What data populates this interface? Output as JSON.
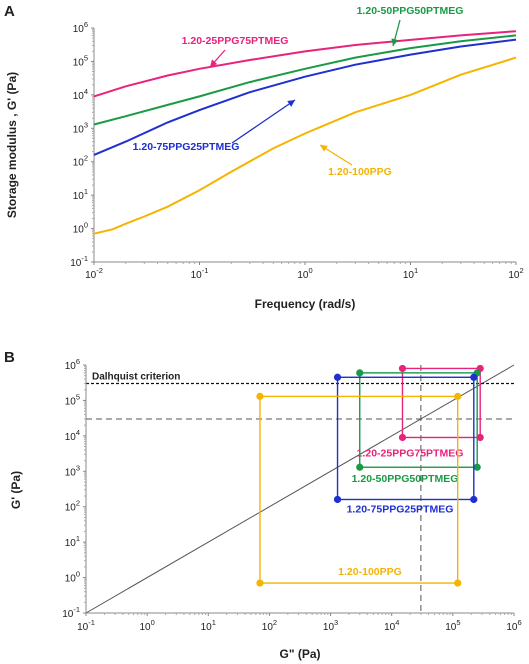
{
  "chart_data": [
    {
      "panel": "A",
      "type": "line",
      "xlabel": "Frequency (rad/s)",
      "ylabel": "Storage modulus , G' (Pa)",
      "xscale": "log",
      "yscale": "log",
      "xlim": [
        0.01,
        100
      ],
      "ylim": [
        0.1,
        1000000
      ],
      "x_ticks": [
        "10-2",
        "10-1",
        "100",
        "101",
        "102"
      ],
      "y_ticks": [
        "10-1",
        "100",
        "101",
        "102",
        "103",
        "104",
        "105",
        "106"
      ],
      "series": [
        {
          "name": "1.20-25PPG75PTMEG",
          "color": "#e8237c",
          "x": [
            0.01,
            0.02,
            0.05,
            0.1,
            0.3,
            1,
            3,
            10,
            30,
            100
          ],
          "y": [
            9000,
            18000,
            38000,
            60000,
            110000,
            200000,
            310000,
            440000,
            600000,
            800000
          ]
        },
        {
          "name": "1.20-50PPG50PTMEG",
          "color": "#1a9a45",
          "x": [
            0.01,
            0.02,
            0.05,
            0.1,
            0.3,
            1,
            3,
            10,
            30,
            100
          ],
          "y": [
            1300,
            2300,
            5000,
            9000,
            24000,
            60000,
            130000,
            250000,
            400000,
            600000
          ]
        },
        {
          "name": "1.20-75PPG25PTMEG",
          "color": "#1f2fd0",
          "x": [
            0.01,
            0.02,
            0.05,
            0.1,
            0.3,
            1,
            3,
            10,
            30,
            100
          ],
          "y": [
            160,
            400,
            1500,
            3500,
            12000,
            35000,
            80000,
            160000,
            280000,
            450000
          ]
        },
        {
          "name": "1.20-100PPG",
          "color": "#f5b400",
          "x": [
            0.01,
            0.015,
            0.02,
            0.03,
            0.05,
            0.1,
            0.2,
            0.5,
            1,
            3,
            10,
            30,
            100
          ],
          "y": [
            0.7,
            0.95,
            1.4,
            2.3,
            4.5,
            14,
            50,
            250,
            700,
            3000,
            10000,
            40000,
            130000
          ]
        }
      ]
    },
    {
      "panel": "B",
      "type": "scatter",
      "xlabel": "G\" (Pa)",
      "ylabel": "G' (Pa)",
      "xscale": "log",
      "yscale": "log",
      "xlim": [
        0.1,
        1000000
      ],
      "ylim": [
        0.1,
        1000000
      ],
      "x_ticks": [
        "10-1",
        "100",
        "101",
        "102",
        "103",
        "104",
        "105",
        "106"
      ],
      "y_ticks": [
        "10-1",
        "100",
        "101",
        "102",
        "103",
        "104",
        "105",
        "106"
      ],
      "annotation": "Dalhquist criterion",
      "dalhquist_y": 300000,
      "ref_h_y": 30000,
      "ref_v_x": 30000,
      "series": [
        {
          "name": "1.20-25PPG75PTMEG",
          "color": "#e8237c",
          "points": [
            [
              15000,
              800000
            ],
            [
              280000,
              800000
            ],
            [
              15000,
              9000
            ],
            [
              280000,
              9000
            ]
          ]
        },
        {
          "name": "1.20-50PPG50PTMEG",
          "color": "#1a9a45",
          "points": [
            [
              3000,
              600000
            ],
            [
              250000,
              600000
            ],
            [
              3000,
              1300
            ],
            [
              250000,
              1300
            ]
          ]
        },
        {
          "name": "1.20-75PPG25PTMEG",
          "color": "#1f2fd0",
          "points": [
            [
              1300,
              450000
            ],
            [
              220000,
              450000
            ],
            [
              1300,
              160
            ],
            [
              220000,
              160
            ]
          ]
        },
        {
          "name": "1.20-100PPG",
          "color": "#f5b400",
          "points": [
            [
              70,
              130000
            ],
            [
              120000,
              130000
            ],
            [
              70,
              0.7
            ],
            [
              120000,
              0.7
            ]
          ]
        }
      ]
    }
  ]
}
